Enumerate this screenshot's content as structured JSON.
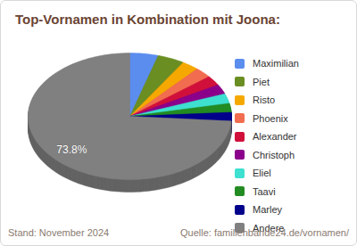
{
  "chart_data": {
    "type": "pie",
    "title": "Top-Vornamen in Kombination mit Joona:",
    "categories": [
      "Maximilian",
      "Piet",
      "Risto",
      "Phoenix",
      "Alexander",
      "Christoph",
      "Eliel",
      "Taavi",
      "Marley",
      "Andere"
    ],
    "values": [
      4.5,
      4.3,
      2.7,
      2.7,
      2.5,
      2.5,
      2.5,
      2.3,
      2.2,
      73.8
    ],
    "value_labels": [
      null,
      null,
      null,
      null,
      null,
      null,
      null,
      null,
      null,
      "73.8%"
    ],
    "colors": [
      "#5b8def",
      "#6b8e23",
      "#f5a800",
      "#f26c4f",
      "#d0103a",
      "#8b008b",
      "#3ee0d0",
      "#228b22",
      "#00008b",
      "#808080"
    ],
    "legend": "right",
    "annotations": [
      "Stand: November 2024",
      "Quelle: familienbande24.de/vornamen/"
    ]
  }
}
